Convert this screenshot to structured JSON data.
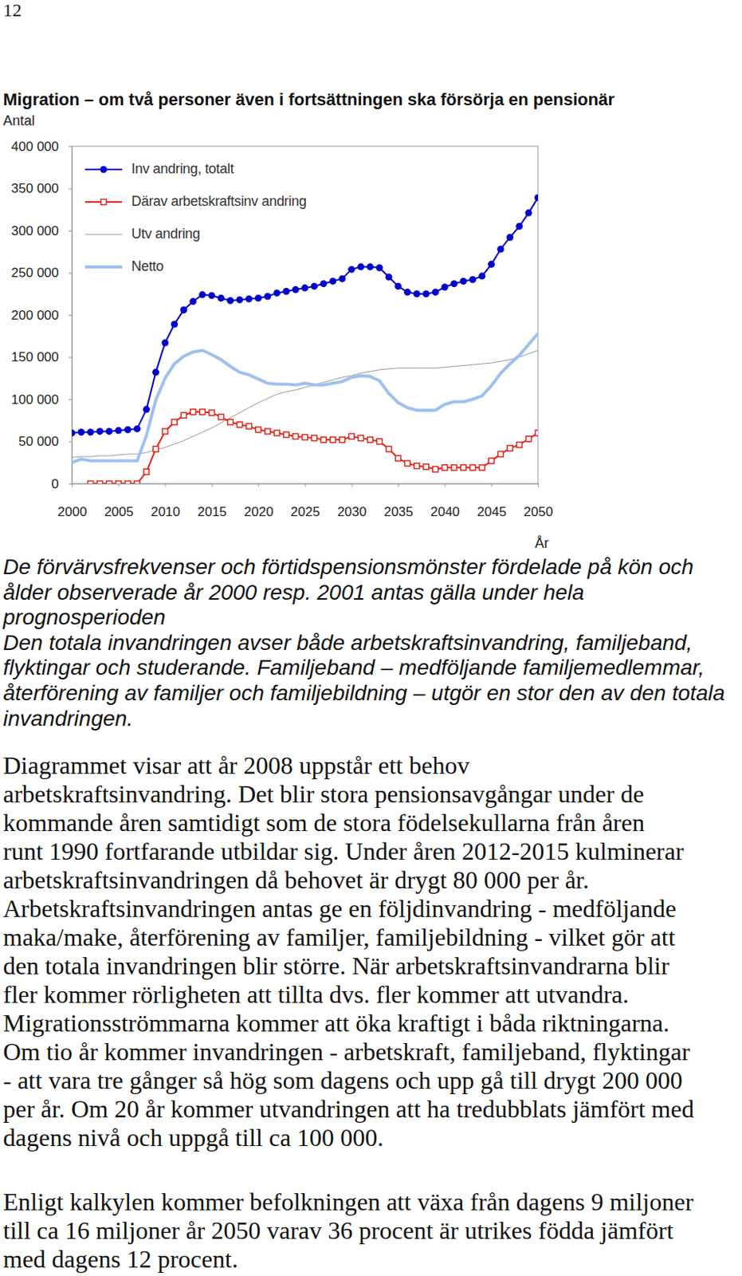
{
  "page_number": "12",
  "chart_data": {
    "type": "line",
    "title": "Migration – om två personer även i fortsättningen ska försörja en pensionär",
    "y_label": "Antal",
    "x_label": "År",
    "x": [
      2000,
      2001,
      2002,
      2003,
      2004,
      2005,
      2006,
      2007,
      2008,
      2009,
      2010,
      2011,
      2012,
      2013,
      2014,
      2015,
      2016,
      2017,
      2018,
      2019,
      2020,
      2021,
      2022,
      2023,
      2024,
      2025,
      2026,
      2027,
      2028,
      2029,
      2030,
      2031,
      2032,
      2033,
      2034,
      2035,
      2036,
      2037,
      2038,
      2039,
      2040,
      2041,
      2042,
      2043,
      2044,
      2045,
      2046,
      2047,
      2048,
      2049,
      2050
    ],
    "xlim": [
      2000,
      2050
    ],
    "xticks": [
      2000,
      2005,
      2010,
      2015,
      2020,
      2025,
      2030,
      2035,
      2040,
      2045,
      2050
    ],
    "ylim": [
      0,
      400000
    ],
    "yticks": [
      0,
      {
        "value": 50000,
        "label": "50 000"
      },
      {
        "value": 100000,
        "label": "100 000"
      },
      {
        "value": 150000,
        "label": "150 000"
      },
      {
        "value": 200000,
        "label": "200 000"
      },
      {
        "value": 250000,
        "label": "250 000"
      },
      {
        "value": 300000,
        "label": "300 000"
      },
      {
        "value": 350000,
        "label": "350 000"
      },
      {
        "value": 400000,
        "label": "400 000"
      }
    ],
    "grid": false,
    "legend": "upper left",
    "series": [
      {
        "name": "Inv andring, totalt",
        "color": "#0000cc",
        "marker": "circle",
        "line_style": "solid",
        "values": [
          60000,
          61000,
          61000,
          62000,
          62000,
          63000,
          64000,
          65000,
          88000,
          132000,
          167000,
          189000,
          206000,
          216000,
          224000,
          223000,
          220000,
          217000,
          218000,
          219000,
          220000,
          222000,
          226000,
          228000,
          230000,
          232000,
          234000,
          237000,
          240000,
          243000,
          254000,
          257000,
          257000,
          256000,
          245000,
          234000,
          227000,
          225000,
          225000,
          227000,
          233000,
          237000,
          240000,
          242000,
          246000,
          260000,
          278000,
          292000,
          305000,
          321000,
          339000
        ]
      },
      {
        "name": "Därav arbetskraftsinv andring",
        "color": "#e3241b",
        "marker": "square",
        "line_style": "solid",
        "values": [
          null,
          null,
          0,
          0,
          0,
          0,
          0,
          0,
          14000,
          41000,
          62000,
          73000,
          81000,
          85000,
          85000,
          84000,
          79000,
          73000,
          70000,
          68000,
          64000,
          62000,
          60000,
          58000,
          56000,
          55000,
          54000,
          52000,
          52000,
          52000,
          56000,
          54000,
          52000,
          50000,
          41000,
          30000,
          24000,
          21000,
          20000,
          17000,
          19000,
          19000,
          19000,
          19000,
          19000,
          27000,
          35000,
          42000,
          46000,
          53000,
          60000
        ]
      },
      {
        "name": "Utv andring",
        "color": "#999999",
        "marker": "none",
        "line_style": "solid",
        "values": [
          31000,
          32000,
          32000,
          33000,
          33000,
          34000,
          35000,
          35000,
          37000,
          40000,
          43000,
          47000,
          51000,
          56000,
          61000,
          66000,
          72000,
          78000,
          84000,
          90000,
          96000,
          101000,
          106000,
          109000,
          111000,
          114000,
          117000,
          120000,
          123000,
          126000,
          128000,
          131000,
          133000,
          135000,
          136000,
          137000,
          137000,
          137000,
          137000,
          137000,
          138000,
          139000,
          140000,
          141000,
          142000,
          143000,
          145000,
          147000,
          150000,
          154000,
          158000
        ]
      },
      {
        "name": "Netto",
        "color": "#9dc1ee",
        "marker": "none",
        "line_style": "solid",
        "values": [
          25000,
          29000,
          27000,
          27000,
          27000,
          27000,
          27000,
          27000,
          57000,
          99000,
          125000,
          142000,
          151000,
          156000,
          158000,
          153000,
          147000,
          139000,
          132000,
          129000,
          124000,
          119000,
          118000,
          118000,
          117000,
          119000,
          117000,
          117000,
          119000,
          121000,
          126000,
          128000,
          127000,
          122000,
          107000,
          96000,
          90000,
          87000,
          87000,
          87000,
          94000,
          97000,
          97000,
          100000,
          104000,
          116000,
          131000,
          142000,
          152000,
          165000,
          178000
        ]
      }
    ]
  },
  "notes": [
    "De förvärvsfrekvenser och förtidspensionsmönster fördelade på kön och",
    "ålder observerade år 2000 resp. 2001 antas gälla under hela",
    "prognosperioden",
    "Den totala invandringen avser både arbetskraftsinvandring, familjeband,",
    "flyktingar och studerande. Familjeband – medföljande familjemedlemmar,",
    "återförening av familjer och familjebildning – utgör en stor den av den totala",
    "invandringen."
  ],
  "paragraphs": [
    [
      "Diagrammet visar att år 2008 uppstår ett behov",
      "arbetskraftsinvandring. Det blir stora pensionsavgångar under de",
      "kommande åren samtidigt som de stora födelsekullarna från åren",
      "runt 1990 fortfarande utbildar sig. Under åren 2012-2015 kulminerar",
      "arbetskraftsinvandringen då behovet är drygt 80 000 per år.",
      "Arbetskraftsinvandringen antas ge en följdinvandring - medföljande",
      "maka/make, återförening av familjer, familjebildning - vilket gör att",
      "den totala invandringen blir större. När arbetskraftsinvandrarna blir",
      "fler kommer rörligheten att tillta dvs. fler kommer att utvandra.",
      "Migrationsströmmarna kommer att öka kraftigt i båda riktningarna.",
      "Om tio år kommer invandringen - arbetskraft, familjeband, flyktingar",
      "- att vara tre gånger så hög som dagens och upp gå till drygt 200 000",
      "per år. Om 20 år kommer utvandringen att ha tredubblats jämfört med",
      "dagens nivå och uppgå till ca 100 000."
    ],
    [
      "Enligt kalkylen kommer befolkningen att växa från dagens 9 miljoner",
      "till ca 16 miljoner år 2050 varav 36 procent är utrikes födda jämfört",
      "med dagens 12 procent."
    ]
  ]
}
